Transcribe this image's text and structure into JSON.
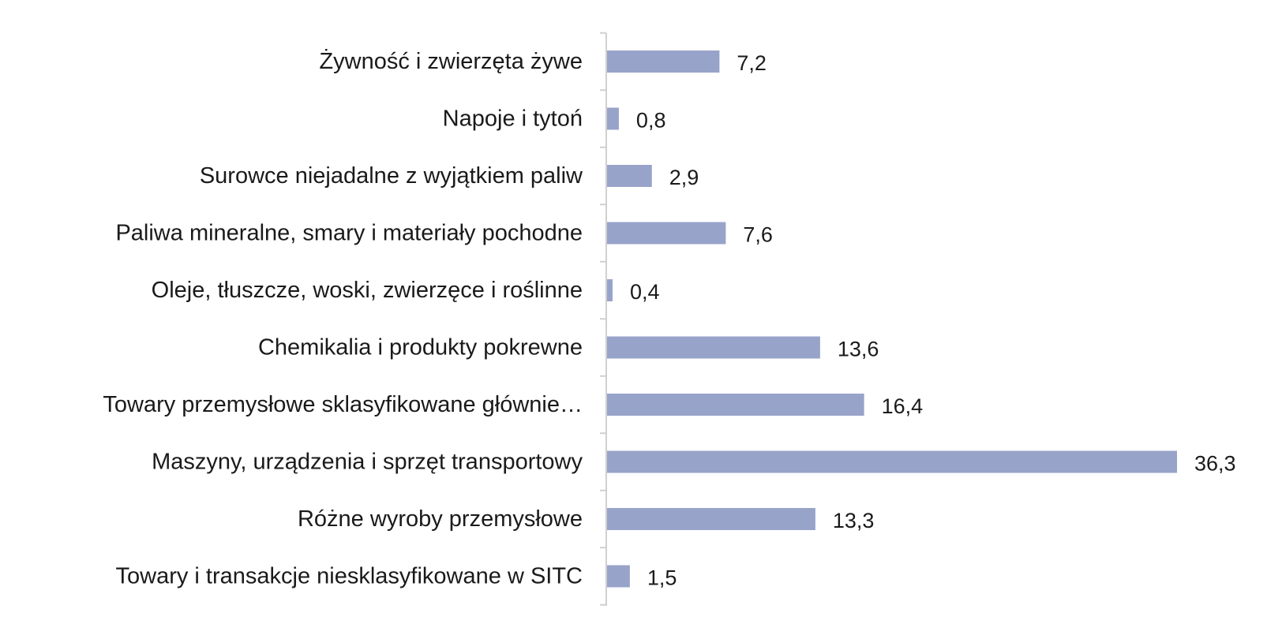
{
  "chart_data": {
    "type": "bar",
    "orientation": "horizontal",
    "categories": [
      "Żywność i zwierzęta żywe",
      "Napoje i tytoń",
      "Surowce niejadalne z wyjątkiem paliw",
      "Paliwa mineralne, smary i materiały  pochodne",
      "Oleje, tłuszcze, woski, zwierzęce i roślinne",
      "Chemikalia i produkty pokrewne",
      "Towary przemysłowe sklasyfikowane głównie…",
      "Maszyny, urządzenia i sprzęt transportowy",
      "Różne wyroby przemysłowe",
      "Towary i transakcje niesklasyfikowane w SITC"
    ],
    "values": [
      7.2,
      0.8,
      2.9,
      7.6,
      0.4,
      13.6,
      16.4,
      36.3,
      13.3,
      1.5
    ],
    "value_labels": [
      "7,2",
      "0,8",
      "2,9",
      "7,6",
      "0,4",
      "13,6",
      "16,4",
      "36,3",
      "13,3",
      "1,5"
    ],
    "title": "",
    "xlabel": "",
    "ylabel": "",
    "xlim": [
      0,
      36.3
    ],
    "grid": false,
    "legend": "none",
    "colors": {
      "bar": "#98a3c9",
      "axis": "#d0d0d0",
      "text": "#1a1a1a"
    }
  }
}
